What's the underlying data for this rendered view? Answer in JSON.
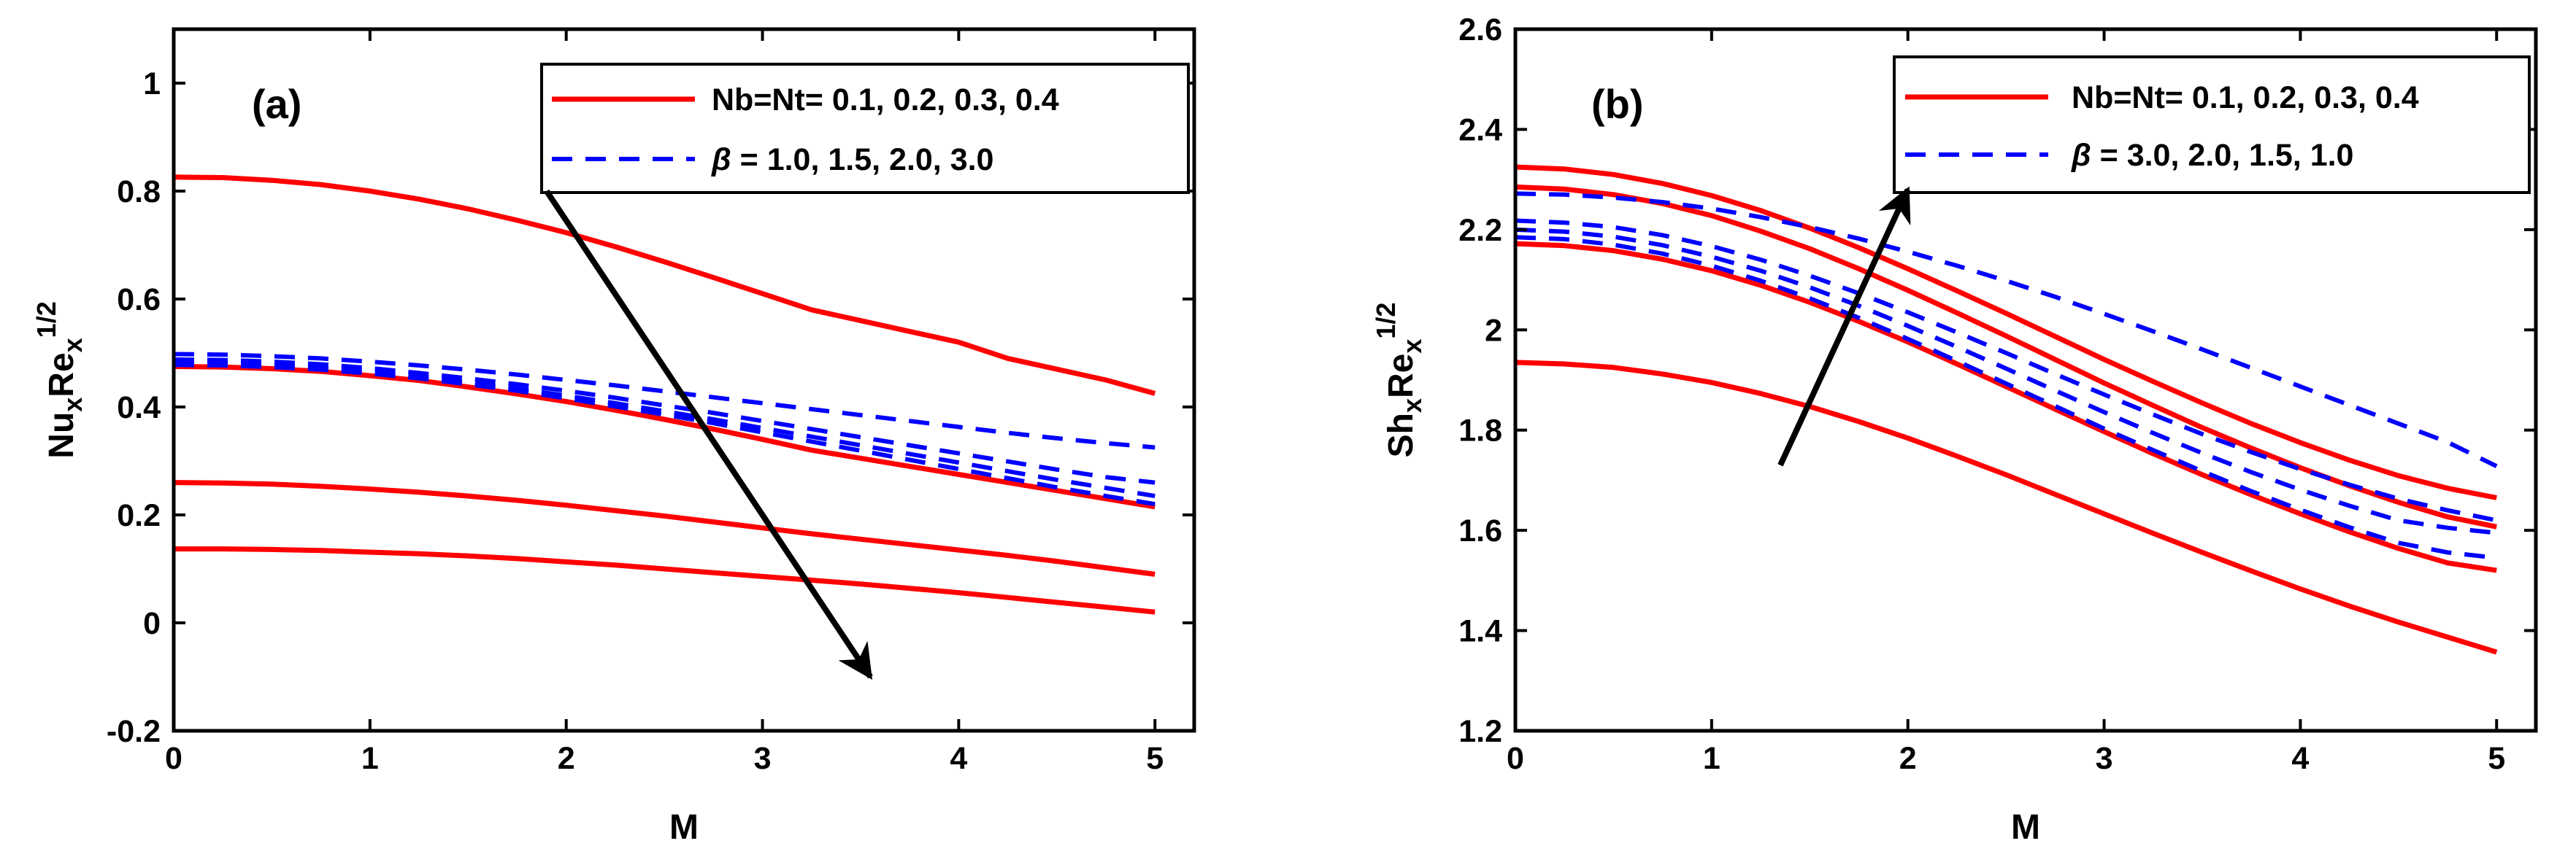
{
  "colors": {
    "nb_nt_series": "#ff0000",
    "beta_series": "#0000ff",
    "axes": "#000000",
    "arrow": "#000000",
    "background": "#ffffff"
  },
  "chart_data": [
    {
      "type": "line",
      "panel_label": "(a)",
      "xlabel": "M",
      "ylabel_main": "Nu",
      "ylabel_sub1": "x",
      "ylabel_mid": "Re",
      "ylabel_sub2": "x",
      "ylabel_sup": "1/2",
      "xlim": [
        0,
        5.2
      ],
      "ylim": [
        -0.2,
        1.1
      ],
      "xticks": [
        0,
        1,
        2,
        3,
        4,
        5
      ],
      "xtick_labels": [
        "0",
        "1",
        "2",
        "3",
        "4",
        "5"
      ],
      "yticks": [
        -0.2,
        0,
        0.2,
        0.4,
        0.6,
        0.8,
        1
      ],
      "ytick_labels": [
        "-0.2",
        "0",
        "0.2",
        "0.4",
        "0.6",
        "0.8",
        "1"
      ],
      "legend_position": "top-right",
      "legend": [
        {
          "style": "solid",
          "color": "#ff0000",
          "prefix": "Nb=Nt= 0.1, 0.2, 0.3, 0.4",
          "symbol": "",
          "suffix": ""
        },
        {
          "style": "dashed",
          "color": "#0000ff",
          "prefix": "",
          "symbol": "β",
          "suffix": " = 1.0, 1.5, 2.0, 3.0"
        }
      ],
      "arrow": {
        "from": [
          1.9,
          0.8
        ],
        "to": [
          3.55,
          -0.1
        ]
      },
      "x": [
        0,
        0.25,
        0.5,
        0.75,
        1,
        1.25,
        1.5,
        1.75,
        2,
        2.25,
        2.5,
        2.75,
        3,
        3.25,
        3.5,
        3.75,
        4,
        4.25,
        4.5,
        4.75,
        5
      ],
      "series": [
        {
          "name": "Nb=Nt=0.1",
          "style": "solid",
          "values": [
            0.826,
            0.825,
            0.82,
            0.812,
            0.8,
            0.785,
            0.767,
            0.746,
            0.723,
            0.697,
            0.669,
            0.64,
            0.61,
            0.58,
            0.56,
            0.54,
            0.52,
            0.49,
            0.47,
            0.45,
            0.425
          ]
        },
        {
          "name": "Nb=Nt=0.2",
          "style": "solid",
          "values": [
            0.475,
            0.474,
            0.471,
            0.466,
            0.458,
            0.449,
            0.437,
            0.424,
            0.41,
            0.394,
            0.377,
            0.359,
            0.34,
            0.32,
            0.305,
            0.29,
            0.275,
            0.26,
            0.245,
            0.23,
            0.215
          ]
        },
        {
          "name": "Nb=Nt=0.3",
          "style": "solid",
          "values": [
            0.26,
            0.259,
            0.257,
            0.253,
            0.248,
            0.242,
            0.235,
            0.227,
            0.218,
            0.208,
            0.198,
            0.187,
            0.176,
            0.165,
            0.155,
            0.145,
            0.135,
            0.125,
            0.114,
            0.102,
            0.09
          ]
        },
        {
          "name": "Nb=Nt=0.4",
          "style": "solid",
          "values": [
            0.137,
            0.137,
            0.136,
            0.134,
            0.131,
            0.128,
            0.124,
            0.119,
            0.113,
            0.107,
            0.1,
            0.093,
            0.086,
            0.079,
            0.072,
            0.064,
            0.056,
            0.047,
            0.038,
            0.029,
            0.02
          ]
        },
        {
          "name": "beta=1.0",
          "style": "dashed",
          "values": [
            0.498,
            0.497,
            0.494,
            0.49,
            0.484,
            0.477,
            0.469,
            0.46,
            0.45,
            0.44,
            0.429,
            0.418,
            0.407,
            0.396,
            0.385,
            0.374,
            0.363,
            0.352,
            0.342,
            0.333,
            0.325
          ]
        },
        {
          "name": "beta=1.5",
          "style": "dashed",
          "values": [
            0.488,
            0.487,
            0.484,
            0.479,
            0.472,
            0.463,
            0.453,
            0.442,
            0.43,
            0.417,
            0.403,
            0.389,
            0.374,
            0.359,
            0.344,
            0.329,
            0.314,
            0.299,
            0.284,
            0.27,
            0.26
          ]
        },
        {
          "name": "beta=2.0",
          "style": "dashed",
          "values": [
            0.482,
            0.481,
            0.478,
            0.473,
            0.466,
            0.457,
            0.446,
            0.434,
            0.421,
            0.407,
            0.392,
            0.377,
            0.361,
            0.345,
            0.329,
            0.313,
            0.297,
            0.281,
            0.265,
            0.25,
            0.235
          ]
        },
        {
          "name": "beta=3.0",
          "style": "dashed",
          "values": [
            0.478,
            0.477,
            0.474,
            0.469,
            0.462,
            0.453,
            0.442,
            0.43,
            0.416,
            0.401,
            0.386,
            0.37,
            0.353,
            0.336,
            0.319,
            0.302,
            0.285,
            0.268,
            0.251,
            0.235,
            0.22
          ]
        }
      ]
    },
    {
      "type": "line",
      "panel_label": "(b)",
      "xlabel": "M",
      "ylabel_main": "Sh",
      "ylabel_sub1": "x",
      "ylabel_mid": "Re",
      "ylabel_sub2": "x",
      "ylabel_sup": "1/2",
      "xlim": [
        0,
        5.2
      ],
      "ylim": [
        1.2,
        2.6
      ],
      "xticks": [
        0,
        1,
        2,
        3,
        4,
        5
      ],
      "xtick_labels": [
        "0",
        "1",
        "2",
        "3",
        "4",
        "5"
      ],
      "yticks": [
        1.2,
        1.4,
        1.6,
        1.8,
        2,
        2.2,
        2.4,
        2.6
      ],
      "ytick_labels": [
        "1.2",
        "1.4",
        "1.6",
        "1.8",
        "2",
        "2.2",
        "2.4",
        "2.6"
      ],
      "legend_position": "top-right",
      "legend": [
        {
          "style": "solid",
          "color": "#ff0000",
          "prefix": "Nb=Nt= 0.1, 0.2, 0.3, 0.4",
          "symbol": "",
          "suffix": ""
        },
        {
          "style": "dashed",
          "color": "#0000ff",
          "prefix": "",
          "symbol": "β",
          "suffix": " = 3.0, 2.0, 1.5, 1.0"
        }
      ],
      "arrow": {
        "from": [
          1.35,
          1.73
        ],
        "to": [
          2.0,
          2.28
        ]
      },
      "x": [
        0,
        0.25,
        0.5,
        0.75,
        1,
        1.25,
        1.5,
        1.75,
        2,
        2.25,
        2.5,
        2.75,
        3,
        3.25,
        3.5,
        3.75,
        4,
        4.25,
        4.5,
        4.75,
        5
      ],
      "series": [
        {
          "name": "Nb=Nt=0.1",
          "style": "solid",
          "values": [
            1.935,
            1.932,
            1.925,
            1.912,
            1.895,
            1.873,
            1.847,
            1.817,
            1.784,
            1.748,
            1.711,
            1.672,
            1.633,
            1.594,
            1.556,
            1.519,
            1.483,
            1.449,
            1.417,
            1.387,
            1.357
          ]
        },
        {
          "name": "Nb=Nt=0.2",
          "style": "solid",
          "values": [
            2.172,
            2.168,
            2.158,
            2.141,
            2.118,
            2.089,
            2.055,
            2.017,
            1.976,
            1.932,
            1.887,
            1.842,
            1.797,
            1.753,
            1.711,
            1.671,
            1.633,
            1.597,
            1.564,
            1.535,
            1.52
          ]
        },
        {
          "name": "Nb=Nt=0.3",
          "style": "solid",
          "values": [
            2.285,
            2.281,
            2.27,
            2.252,
            2.228,
            2.197,
            2.162,
            2.122,
            2.079,
            2.034,
            1.988,
            1.941,
            1.894,
            1.849,
            1.805,
            1.764,
            1.725,
            1.689,
            1.656,
            1.627,
            1.607
          ]
        },
        {
          "name": "Nb=Nt=0.4",
          "style": "solid",
          "values": [
            2.325,
            2.321,
            2.31,
            2.292,
            2.268,
            2.238,
            2.203,
            2.164,
            2.122,
            2.078,
            2.033,
            1.987,
            1.941,
            1.897,
            1.854,
            1.813,
            1.775,
            1.74,
            1.709,
            1.684,
            1.665
          ]
        },
        {
          "name": "beta=3.0",
          "style": "dashed",
          "values": [
            2.185,
            2.181,
            2.17,
            2.152,
            2.128,
            2.098,
            2.063,
            2.024,
            1.982,
            1.938,
            1.893,
            1.848,
            1.803,
            1.76,
            1.718,
            1.678,
            1.641,
            1.606,
            1.575,
            1.556,
            1.545
          ]
        },
        {
          "name": "beta=2.0",
          "style": "dashed",
          "values": [
            2.2,
            2.196,
            2.186,
            2.169,
            2.146,
            2.118,
            2.085,
            2.048,
            2.008,
            1.966,
            1.923,
            1.879,
            1.836,
            1.794,
            1.754,
            1.716,
            1.681,
            1.649,
            1.62,
            1.605,
            1.595
          ]
        },
        {
          "name": "beta=1.5",
          "style": "dashed",
          "values": [
            2.218,
            2.214,
            2.205,
            2.189,
            2.167,
            2.14,
            2.108,
            2.073,
            2.035,
            1.995,
            1.954,
            1.912,
            1.871,
            1.831,
            1.792,
            1.756,
            1.722,
            1.691,
            1.663,
            1.64,
            1.62
          ]
        },
        {
          "name": "beta=1.0",
          "style": "dashed",
          "values": [
            2.272,
            2.27,
            2.264,
            2.255,
            2.242,
            2.225,
            2.205,
            2.182,
            2.156,
            2.128,
            2.098,
            2.066,
            2.032,
            1.997,
            1.961,
            1.924,
            1.887,
            1.85,
            1.813,
            1.776,
            1.728
          ]
        }
      ]
    }
  ]
}
